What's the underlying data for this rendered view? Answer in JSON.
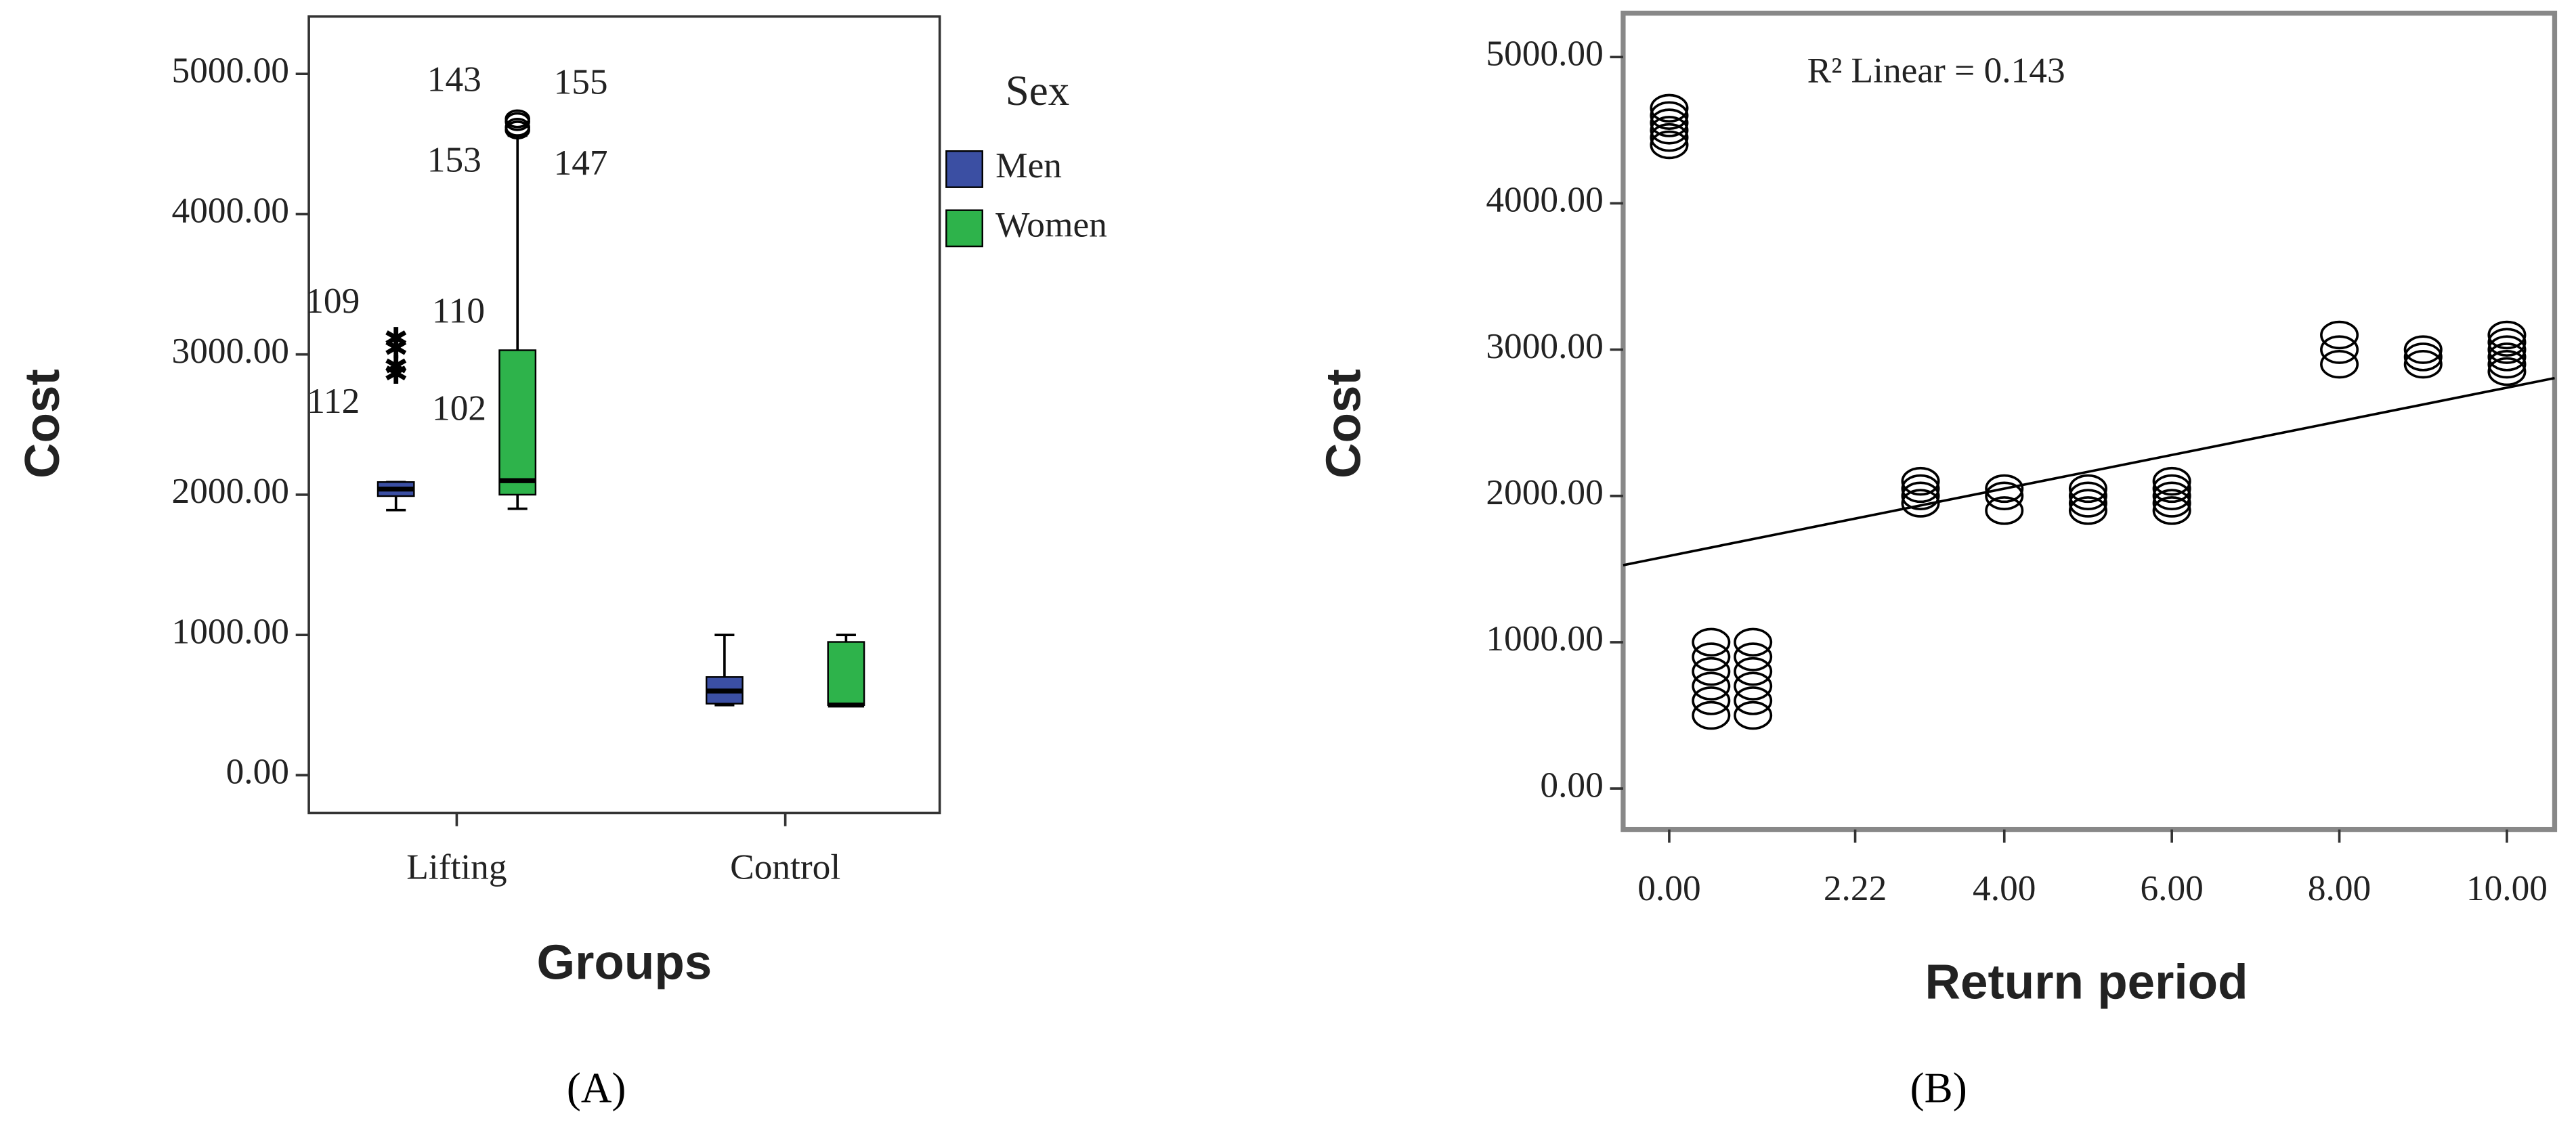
{
  "chart_data": [
    {
      "type": "box",
      "caption": "(A)",
      "xlabel": "Groups",
      "ylabel": "Cost",
      "legend_title": "Sex",
      "categories": [
        "Lifting",
        "Control"
      ],
      "ylim": [
        -270,
        5410
      ],
      "yticks": [
        {
          "value": 0,
          "label": "0.00"
        },
        {
          "value": 1000,
          "label": "1000.00"
        },
        {
          "value": 2000,
          "label": "2000.00"
        },
        {
          "value": 3000,
          "label": "3000.00"
        },
        {
          "value": 4000,
          "label": "4000.00"
        },
        {
          "value": 5000,
          "label": "5000.00"
        }
      ],
      "series": [
        {
          "name": "Men",
          "color": "#3b4fa3",
          "boxes": [
            {
              "min": 1890,
              "q1": 1990,
              "median": 2040,
              "q3": 2090,
              "max": 2090
            },
            {
              "min": 500,
              "q1": 510,
              "median": 600,
              "q3": 700,
              "max": 1000
            }
          ],
          "outliers": [
            [
              {
                "id": "109",
                "value": 3100,
                "marker": "star"
              },
              {
                "id": "110",
                "value": 3030,
                "marker": "star"
              },
              {
                "id": "112",
                "value": 2900,
                "marker": "star"
              },
              {
                "id": "102",
                "value": 2850,
                "marker": "star"
              }
            ],
            []
          ]
        },
        {
          "name": "Women",
          "color": "#2eb34b",
          "boxes": [
            {
              "min": 1900,
              "q1": 2000,
              "median": 2100,
              "q3": 3030,
              "max": 4560
            },
            {
              "min": 500,
              "q1": 500,
              "median": 500,
              "q3": 950,
              "max": 1000
            }
          ],
          "outliers": [
            [
              {
                "id": "143",
                "value": 4680,
                "marker": "circle"
              },
              {
                "id": "155",
                "value": 4660,
                "marker": "circle"
              },
              {
                "id": "153",
                "value": 4620,
                "marker": "circle"
              },
              {
                "id": "147",
                "value": 4600,
                "marker": "circle"
              }
            ],
            []
          ]
        }
      ]
    },
    {
      "type": "scatter",
      "caption": "(B)",
      "xlabel": "Return period",
      "ylabel": "Cost",
      "annotation": "R² Linear = 0.143",
      "xlim": [
        -0.55,
        10.57
      ],
      "ylim": [
        -280,
        5300
      ],
      "xticks": [
        {
          "value": 0,
          "label": "0.00"
        },
        {
          "value": 2.22,
          "label": "2.22"
        },
        {
          "value": 4,
          "label": "4.00"
        },
        {
          "value": 6,
          "label": "6.00"
        },
        {
          "value": 8,
          "label": "8.00"
        },
        {
          "value": 10,
          "label": "10.00"
        }
      ],
      "yticks": [
        {
          "value": 0,
          "label": "0.00"
        },
        {
          "value": 1000,
          "label": "1000.00"
        },
        {
          "value": 2000,
          "label": "2000.00"
        },
        {
          "value": 3000,
          "label": "3000.00"
        },
        {
          "value": 4000,
          "label": "4000.00"
        },
        {
          "value": 5000,
          "label": "5000.00"
        }
      ],
      "x": [
        0,
        0,
        0,
        0,
        0,
        0,
        0.5,
        0.5,
        0.5,
        0.5,
        0.5,
        0.5,
        1,
        1,
        1,
        1,
        1,
        1,
        3,
        3,
        3,
        3,
        4,
        4,
        4,
        5,
        5,
        5,
        5,
        6,
        6,
        6,
        6,
        6,
        8,
        8,
        8,
        9,
        9,
        9,
        10,
        10,
        10,
        10,
        10,
        10
      ],
      "values": [
        4400,
        4450,
        4500,
        4550,
        4600,
        4650,
        500,
        600,
        700,
        800,
        900,
        1000,
        500,
        600,
        700,
        800,
        900,
        1000,
        1950,
        2000,
        2050,
        2100,
        1900,
        2000,
        2050,
        1900,
        1950,
        2000,
        2050,
        1900,
        1950,
        2000,
        2050,
        2100,
        2900,
        3000,
        3100,
        2900,
        2950,
        3000,
        2850,
        2900,
        2950,
        3000,
        3050,
        3100
      ],
      "fit": {
        "intercept": 1590,
        "slope": 115
      }
    }
  ]
}
